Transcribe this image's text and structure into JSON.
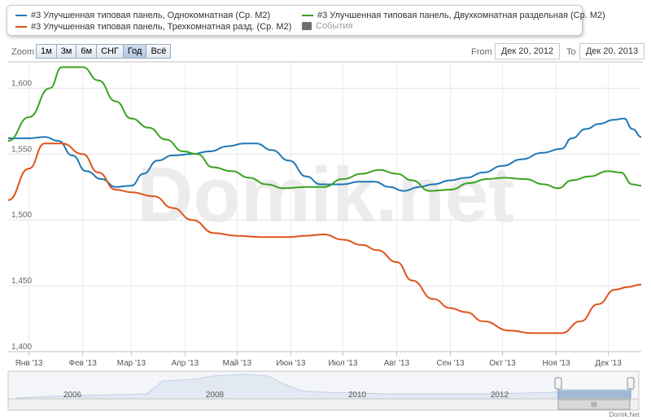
{
  "legend": {
    "items": [
      {
        "label": "#3 Улучшенная типовая панель, Однокомнатная (Ср. М2)",
        "color": "#1f78b4"
      },
      {
        "label": "#3 Улучшенная типовая панель, Двухкомнатная раздельная (Ср. М2)",
        "color": "#3aa321"
      },
      {
        "label": "#3 Улучшенная типовая панель, Трехкомнатная разд. (Ср. М2)",
        "color": "#e0531b"
      },
      {
        "label": "События",
        "color": "#6f6f6f"
      }
    ]
  },
  "zoom": {
    "label": "Zoom",
    "buttons": [
      "1м",
      "3м",
      "6м",
      "СНГ",
      "Год",
      "Всё"
    ],
    "active": "Год"
  },
  "range": {
    "from_label": "From",
    "from_value": "Дек 20, 2012",
    "to_label": "To",
    "to_value": "Дек 20, 2013"
  },
  "watermark": "Domik.net",
  "navigator": {
    "years": [
      "2006",
      "2008",
      "2010",
      "2012"
    ],
    "handle_glyph": "III"
  },
  "credit": "Domik.Net",
  "chart_data": {
    "type": "line",
    "title": "",
    "xlabel": "",
    "ylabel": "",
    "x_range": [
      "2012-12-20",
      "2013-12-20"
    ],
    "ylim": [
      1400,
      1620
    ],
    "yticks": [
      1400,
      1450,
      1500,
      1550,
      1600
    ],
    "ytick_labels": [
      "1,400",
      "1,450",
      "1,500",
      "1,550",
      "1,600"
    ],
    "xticks": [
      {
        "date": "2013-01-01",
        "label": "Янв '13"
      },
      {
        "date": "2013-02-01",
        "label": "Фев '13"
      },
      {
        "date": "2013-03-01",
        "label": "Мар '13"
      },
      {
        "date": "2013-04-01",
        "label": "Апр '13"
      },
      {
        "date": "2013-05-01",
        "label": "Май '13"
      },
      {
        "date": "2013-06-01",
        "label": "Июн '13"
      },
      {
        "date": "2013-07-01",
        "label": "Июл '13"
      },
      {
        "date": "2013-08-01",
        "label": "Авг '13"
      },
      {
        "date": "2013-09-01",
        "label": "Сен '13"
      },
      {
        "date": "2013-10-01",
        "label": "Окт '13"
      },
      {
        "date": "2013-11-01",
        "label": "Ноя '13"
      },
      {
        "date": "2013-12-01",
        "label": "Дек '13"
      }
    ],
    "grid": true,
    "legend_position": "top",
    "series": [
      {
        "name": "#3 Улучшенная типовая панель, Однокомнатная (Ср. М2)",
        "color": "#1f78b4",
        "points": [
          [
            "2012-12-20",
            1562
          ],
          [
            "2013-01-01",
            1562
          ],
          [
            "2013-01-10",
            1563
          ],
          [
            "2013-01-18",
            1560
          ],
          [
            "2013-01-26",
            1549
          ],
          [
            "2013-02-03",
            1537
          ],
          [
            "2013-02-12",
            1531
          ],
          [
            "2013-02-20",
            1525
          ],
          [
            "2013-03-01",
            1526
          ],
          [
            "2013-03-08",
            1535
          ],
          [
            "2013-03-16",
            1545
          ],
          [
            "2013-03-25",
            1549
          ],
          [
            "2013-04-05",
            1550
          ],
          [
            "2013-04-15",
            1552
          ],
          [
            "2013-04-26",
            1556
          ],
          [
            "2013-05-05",
            1558
          ],
          [
            "2013-05-12",
            1558
          ],
          [
            "2013-05-21",
            1553
          ],
          [
            "2013-05-31",
            1545
          ],
          [
            "2013-06-10",
            1533
          ],
          [
            "2013-06-18",
            1527
          ],
          [
            "2013-07-01",
            1527
          ],
          [
            "2013-07-10",
            1529
          ],
          [
            "2013-07-19",
            1529
          ],
          [
            "2013-07-28",
            1525
          ],
          [
            "2013-08-05",
            1522
          ],
          [
            "2013-08-14",
            1525
          ],
          [
            "2013-08-22",
            1527
          ],
          [
            "2013-09-01",
            1530
          ],
          [
            "2013-09-10",
            1532
          ],
          [
            "2013-09-20",
            1536
          ],
          [
            "2013-10-01",
            1541
          ],
          [
            "2013-10-12",
            1546
          ],
          [
            "2013-10-24",
            1551
          ],
          [
            "2013-11-04",
            1554
          ],
          [
            "2013-11-10",
            1562
          ],
          [
            "2013-11-18",
            1569
          ],
          [
            "2013-11-26",
            1573
          ],
          [
            "2013-12-04",
            1576
          ],
          [
            "2013-12-10",
            1577
          ],
          [
            "2013-12-15",
            1569
          ],
          [
            "2013-12-20",
            1563
          ]
        ]
      },
      {
        "name": "#3 Улучшенная типовая панель, Двухкомнатная раздельная (Ср. М2)",
        "color": "#3aa321",
        "points": [
          [
            "2012-12-20",
            1560
          ],
          [
            "2013-01-01",
            1578
          ],
          [
            "2013-01-13",
            1600
          ],
          [
            "2013-01-20",
            1616
          ],
          [
            "2013-02-01",
            1616
          ],
          [
            "2013-02-10",
            1606
          ],
          [
            "2013-02-20",
            1590
          ],
          [
            "2013-03-01",
            1577
          ],
          [
            "2013-03-11",
            1570
          ],
          [
            "2013-03-21",
            1561
          ],
          [
            "2013-03-31",
            1552
          ],
          [
            "2013-04-08",
            1550
          ],
          [
            "2013-04-17",
            1540
          ],
          [
            "2013-04-28",
            1537
          ],
          [
            "2013-05-08",
            1532
          ],
          [
            "2013-05-18",
            1527
          ],
          [
            "2013-05-28",
            1524
          ],
          [
            "2013-06-10",
            1525
          ],
          [
            "2013-06-20",
            1525
          ],
          [
            "2013-07-01",
            1531
          ],
          [
            "2013-07-12",
            1535
          ],
          [
            "2013-07-22",
            1538
          ],
          [
            "2013-08-01",
            1535
          ],
          [
            "2013-08-10",
            1530
          ],
          [
            "2013-08-20",
            1522
          ],
          [
            "2013-09-01",
            1523
          ],
          [
            "2013-09-12",
            1528
          ],
          [
            "2013-09-22",
            1531
          ],
          [
            "2013-10-02",
            1532
          ],
          [
            "2013-10-14",
            1531
          ],
          [
            "2013-10-25",
            1527
          ],
          [
            "2013-11-02",
            1524
          ],
          [
            "2013-11-10",
            1530
          ],
          [
            "2013-11-20",
            1533
          ],
          [
            "2013-12-01",
            1537
          ],
          [
            "2013-12-08",
            1536
          ],
          [
            "2013-12-15",
            1527
          ],
          [
            "2013-12-20",
            1526
          ]
        ]
      },
      {
        "name": "#3 Улучшенная типовая панель, Трехкомнатная разд. (Ср. М2)",
        "color": "#e0531b",
        "points": [
          [
            "2012-12-20",
            1515
          ],
          [
            "2013-01-01",
            1539
          ],
          [
            "2013-01-10",
            1558
          ],
          [
            "2013-01-20",
            1558
          ],
          [
            "2013-02-01",
            1550
          ],
          [
            "2013-02-10",
            1536
          ],
          [
            "2013-02-20",
            1523
          ],
          [
            "2013-03-01",
            1521
          ],
          [
            "2013-03-14",
            1518
          ],
          [
            "2013-03-25",
            1509
          ],
          [
            "2013-04-05",
            1500
          ],
          [
            "2013-04-18",
            1490
          ],
          [
            "2013-04-30",
            1488
          ],
          [
            "2013-05-15",
            1487
          ],
          [
            "2013-05-31",
            1487
          ],
          [
            "2013-06-10",
            1488
          ],
          [
            "2013-06-20",
            1489
          ],
          [
            "2013-07-01",
            1485
          ],
          [
            "2013-07-12",
            1481
          ],
          [
            "2013-07-21",
            1477
          ],
          [
            "2013-08-01",
            1468
          ],
          [
            "2013-08-10",
            1454
          ],
          [
            "2013-08-22",
            1440
          ],
          [
            "2013-09-01",
            1433
          ],
          [
            "2013-09-10",
            1430
          ],
          [
            "2013-09-20",
            1423
          ],
          [
            "2013-10-05",
            1416
          ],
          [
            "2013-10-18",
            1414
          ],
          [
            "2013-11-04",
            1414
          ],
          [
            "2013-11-15",
            1423
          ],
          [
            "2013-11-25",
            1436
          ],
          [
            "2013-12-05",
            1447
          ],
          [
            "2013-12-12",
            1449
          ],
          [
            "2013-12-20",
            1451
          ]
        ]
      }
    ]
  }
}
